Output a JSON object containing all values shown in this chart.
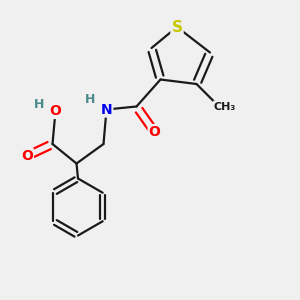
{
  "background_color": "#f0f0f0",
  "bond_color": "#1a1a1a",
  "bond_width": 1.6,
  "atom_colors": {
    "S": "#c8c800",
    "O": "#ff0000",
    "N": "#0000ee",
    "C": "#1a1a1a",
    "H": "#4a8a8a"
  },
  "font_size": 10,
  "figsize": [
    3.0,
    3.0
  ],
  "dpi": 100
}
